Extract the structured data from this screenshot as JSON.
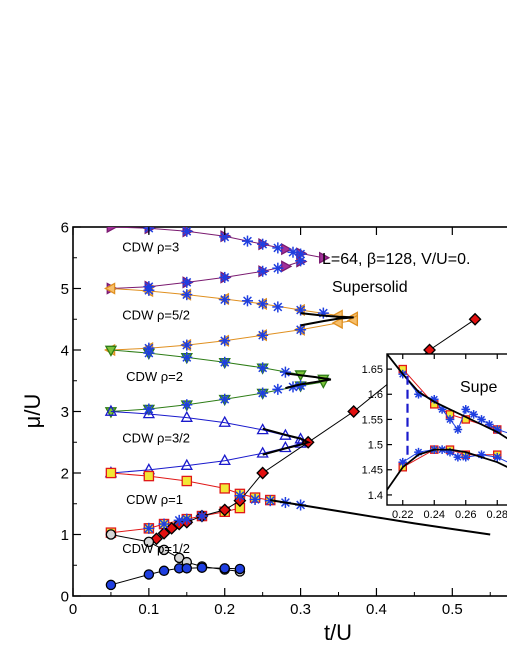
{
  "chart_data": {
    "type": "scatter",
    "main": {
      "xlabel": "t/U",
      "ylabel": "μ/U",
      "xlim": [
        0,
        0.58
      ],
      "ylim": [
        0,
        6
      ],
      "xticks": [
        0,
        0.1,
        0.2,
        0.3,
        0.4,
        0.5
      ],
      "xtick_labels": [
        "0",
        "0.1",
        "0.2",
        "0.3",
        "0.4",
        "0.5"
      ],
      "yticks": [
        0,
        1,
        2,
        3,
        4,
        5,
        6
      ],
      "ytick_labels": [
        "0",
        "1",
        "2",
        "3",
        "4",
        "5",
        "6"
      ],
      "grid": false,
      "annotations": {
        "params": "L=64, β=128, V/U=0.",
        "supersolid": "Supersolid",
        "cdw_labels": [
          {
            "text": "CDW   ρ=3",
            "x": 0.065,
            "y": 5.6
          },
          {
            "text": "CDW   ρ=5/2",
            "x": 0.065,
            "y": 4.5
          },
          {
            "text": "CDW   ρ=2",
            "x": 0.07,
            "y": 3.5
          },
          {
            "text": "CDW   ρ=3/2",
            "x": 0.065,
            "y": 2.5
          },
          {
            "text": "CDW   ρ=1",
            "x": 0.07,
            "y": 1.5
          },
          {
            "text": "CDW   ρ=1/2",
            "x": 0.065,
            "y": 0.7
          }
        ]
      },
      "series": [
        {
          "marker": "triangle-right",
          "fill": "#a3309a",
          "edge": "#7a1a70",
          "line": "#7a1a70",
          "x": [
            0.05,
            0.1,
            0.15,
            0.2,
            0.25,
            0.28,
            0.3,
            0.33
          ],
          "y": [
            6.0,
            5.98,
            5.93,
            5.85,
            5.72,
            5.64,
            5.57,
            5.5
          ]
        },
        {
          "marker": "triangle-right",
          "fill": "#a3309a",
          "edge": "#7a1a70",
          "line": "#7a1a70",
          "x": [
            0.05,
            0.1,
            0.15,
            0.2,
            0.25,
            0.28,
            0.3
          ],
          "y": [
            5.0,
            5.03,
            5.1,
            5.18,
            5.28,
            5.36,
            5.44
          ]
        },
        {
          "marker": "triangle-left",
          "fill": "#f7bf6a",
          "edge": "#e09020",
          "line": "#e09020",
          "x": [
            0.05,
            0.1,
            0.15,
            0.2,
            0.25,
            0.3,
            0.35,
            0.37
          ],
          "y": [
            5.0,
            4.96,
            4.9,
            4.83,
            4.75,
            4.65,
            4.56,
            4.53
          ]
        },
        {
          "marker": "triangle-left",
          "fill": "#f7bf6a",
          "edge": "#e09020",
          "line": "#e09020",
          "x": [
            0.05,
            0.1,
            0.15,
            0.2,
            0.25,
            0.3,
            0.35,
            0.37
          ],
          "y": [
            4.0,
            4.03,
            4.08,
            4.15,
            4.24,
            4.33,
            4.44,
            4.48
          ]
        },
        {
          "marker": "triangle-down",
          "fill": "#7cc23a",
          "edge": "#2e7d16",
          "line": "#2e7d16",
          "x": [
            0.05,
            0.1,
            0.15,
            0.2,
            0.25,
            0.3,
            0.33
          ],
          "y": [
            4.0,
            3.95,
            3.88,
            3.8,
            3.71,
            3.6,
            3.53
          ]
        },
        {
          "marker": "triangle-down",
          "fill": "#7cc23a",
          "edge": "#2e7d16",
          "line": "#2e7d16",
          "x": [
            0.05,
            0.1,
            0.15,
            0.2,
            0.25,
            0.3,
            0.33
          ],
          "y": [
            3.0,
            3.04,
            3.11,
            3.2,
            3.3,
            3.42,
            3.48
          ]
        },
        {
          "marker": "triangle-up",
          "fill": "none",
          "edge": "#1a1acc",
          "line": "#1a1acc",
          "x": [
            0.05,
            0.1,
            0.15,
            0.2,
            0.25,
            0.28,
            0.3
          ],
          "y": [
            3.0,
            2.96,
            2.9,
            2.82,
            2.7,
            2.61,
            2.55
          ]
        },
        {
          "marker": "triangle-up",
          "fill": "none",
          "edge": "#1a1acc",
          "line": "#1a1acc",
          "x": [
            0.05,
            0.1,
            0.15,
            0.2,
            0.25,
            0.28,
            0.3
          ],
          "y": [
            2.0,
            2.05,
            2.12,
            2.2,
            2.32,
            2.41,
            2.48
          ]
        },
        {
          "marker": "square",
          "fill": "#f2e836",
          "edge": "#e01818",
          "line": "#e01818",
          "x": [
            0.05,
            0.1,
            0.15,
            0.2,
            0.22,
            0.24,
            0.26
          ],
          "y": [
            2.0,
            1.95,
            1.87,
            1.75,
            1.66,
            1.6,
            1.56
          ]
        },
        {
          "marker": "square",
          "fill": "#f2e836",
          "edge": "#e01818",
          "line": "#e01818",
          "x": [
            0.05,
            0.1,
            0.12,
            0.15,
            0.17,
            0.2,
            0.22
          ],
          "y": [
            1.03,
            1.1,
            1.17,
            1.25,
            1.3,
            1.37,
            1.43
          ]
        },
        {
          "marker": "diamond",
          "fill": "#e21010",
          "edge": "#000000",
          "line": "#000000",
          "x": [
            0.11,
            0.12,
            0.13,
            0.14,
            0.15,
            0.17,
            0.2,
            0.22,
            0.25,
            0.31,
            0.37,
            0.47,
            0.53
          ],
          "y": [
            0.93,
            1.02,
            1.1,
            1.17,
            1.2,
            1.3,
            1.4,
            1.55,
            2.0,
            2.5,
            3.0,
            4.0,
            4.5
          ]
        },
        {
          "marker": "circle",
          "fill": "#d6d6d6",
          "edge": "#000000",
          "line": "#000000",
          "x": [
            0.05,
            0.1,
            0.12,
            0.14,
            0.15,
            0.17,
            0.2,
            0.22
          ],
          "y": [
            1.0,
            0.88,
            0.75,
            0.62,
            0.55,
            0.48,
            0.43,
            0.4
          ]
        },
        {
          "marker": "circle",
          "fill": "#1f3fe0",
          "edge": "#000000",
          "line": "#000000",
          "x": [
            0.05,
            0.1,
            0.12,
            0.14,
            0.15,
            0.17,
            0.2,
            0.22
          ],
          "y": [
            0.18,
            0.35,
            0.41,
            0.45,
            0.45,
            0.46,
            0.45,
            0.44
          ]
        },
        {
          "marker": "asterisk",
          "fill": "#1f3fe0",
          "edge": "#1f3fe0",
          "line": "none",
          "x": [
            0.1,
            0.15,
            0.2,
            0.23,
            0.25,
            0.27,
            0.29,
            0.3,
            0.1,
            0.15,
            0.2,
            0.25,
            0.27,
            0.3,
            0.1,
            0.15,
            0.2,
            0.23,
            0.25,
            0.27,
            0.3,
            0.33,
            0.1,
            0.15,
            0.2,
            0.25,
            0.3,
            0.1,
            0.15,
            0.2,
            0.25,
            0.28,
            0.1,
            0.15,
            0.2,
            0.25,
            0.27,
            0.29,
            0.3,
            0.1,
            0.12,
            0.14,
            0.15,
            0.17,
            0.22,
            0.24,
            0.26,
            0.28,
            0.3
          ],
          "y": [
            5.98,
            5.93,
            5.84,
            5.77,
            5.72,
            5.66,
            5.59,
            5.56,
            5.03,
            5.1,
            5.18,
            5.28,
            5.33,
            5.45,
            4.97,
            4.9,
            4.82,
            4.8,
            4.75,
            4.7,
            4.65,
            4.6,
            4.03,
            4.08,
            4.15,
            4.24,
            4.33,
            3.95,
            3.88,
            3.8,
            3.71,
            3.64,
            3.04,
            3.11,
            3.2,
            3.3,
            3.36,
            3.4,
            3.42,
            1.1,
            1.17,
            1.23,
            1.25,
            1.3,
            1.63,
            1.57,
            1.55,
            1.52,
            1.48
          ]
        },
        {
          "marker": "none",
          "fill": "none",
          "edge": "#000000",
          "line": "#000000",
          "line_width": 2,
          "x": [
            0.26,
            0.3,
            0.35,
            0.4,
            0.45,
            0.5,
            0.55
          ],
          "y": [
            1.56,
            1.48,
            1.38,
            1.28,
            1.18,
            1.09,
            1.0
          ]
        },
        {
          "marker": "none",
          "fill": "none",
          "edge": "#000000",
          "line": "#000000",
          "line_width": 2,
          "x": [
            0.3,
            0.33,
            0.35,
            0.37,
            0.35,
            0.33,
            0.3
          ],
          "y": [
            4.4,
            4.47,
            4.51,
            4.53,
            4.54,
            4.56,
            4.6
          ]
        },
        {
          "marker": "none",
          "fill": "none",
          "edge": "#000000",
          "line": "#000000",
          "line_width": 2,
          "x": [
            0.28,
            0.3,
            0.32,
            0.34,
            0.32,
            0.3,
            0.28
          ],
          "y": [
            3.38,
            3.44,
            3.48,
            3.52,
            3.56,
            3.59,
            3.62
          ]
        },
        {
          "marker": "none",
          "fill": "none",
          "edge": "#000000",
          "line": "#000000",
          "line_width": 2,
          "x": [
            0.25,
            0.28,
            0.3,
            0.31,
            0.3,
            0.28,
            0.25
          ],
          "y": [
            2.3,
            2.4,
            2.46,
            2.5,
            2.56,
            2.62,
            2.72
          ]
        }
      ]
    },
    "inset": {
      "title": "Supe",
      "xlim": [
        0.21,
        0.29
      ],
      "ylim": [
        1.38,
        1.68
      ],
      "xticks": [
        0.22,
        0.24,
        0.26,
        0.28
      ],
      "xtick_labels": [
        "0.22",
        "0.24",
        "0.26",
        "0.28"
      ],
      "yticks": [
        1.4,
        1.45,
        1.5,
        1.55,
        1.6,
        1.65
      ],
      "ytick_labels": [
        "1.4",
        "1.45",
        "1.5",
        "1.55",
        "1.6",
        "1.65"
      ],
      "series": [
        {
          "marker": "square",
          "fill": "#f2e836",
          "edge": "#e01818",
          "line": "#e01818",
          "x": [
            0.22,
            0.24,
            0.25,
            0.26,
            0.28
          ],
          "y": [
            1.65,
            1.58,
            1.56,
            1.55,
            1.53
          ]
        },
        {
          "marker": "square",
          "fill": "#f2e836",
          "edge": "#e01818",
          "line": "#e01818",
          "x": [
            0.22,
            0.24,
            0.25,
            0.26,
            0.28
          ],
          "y": [
            1.455,
            1.49,
            1.49,
            1.48,
            1.48
          ]
        },
        {
          "marker": "asterisk",
          "fill": "#1f3fe0",
          "edge": "#1f3fe0",
          "line": "#1f3fe0",
          "x": [
            0.22,
            0.23,
            0.24,
            0.245,
            0.25,
            0.255,
            0.26,
            0.265,
            0.27,
            0.275,
            0.28,
            0.29
          ],
          "y": [
            1.64,
            1.6,
            1.59,
            1.57,
            1.55,
            1.53,
            1.57,
            1.56,
            1.55,
            1.54,
            1.53,
            1.52
          ]
        },
        {
          "marker": "asterisk",
          "fill": "#1f3fe0",
          "edge": "#1f3fe0",
          "line": "#1f3fe0",
          "x": [
            0.22,
            0.23,
            0.24,
            0.245,
            0.25,
            0.255,
            0.26,
            0.27,
            0.28,
            0.29
          ],
          "y": [
            1.465,
            1.485,
            1.49,
            1.49,
            1.485,
            1.475,
            1.475,
            1.48,
            1.475,
            1.46
          ]
        },
        {
          "marker": "none",
          "fill": "none",
          "edge": "#000000",
          "line": "#000000",
          "line_width": 1.8,
          "x": [
            0.21,
            0.22,
            0.23,
            0.24,
            0.25,
            0.26,
            0.27,
            0.28,
            0.29
          ],
          "y": [
            1.68,
            1.64,
            1.605,
            1.585,
            1.57,
            1.555,
            1.54,
            1.525,
            1.505
          ]
        },
        {
          "marker": "none",
          "fill": "none",
          "edge": "#000000",
          "line": "#000000",
          "line_width": 1.8,
          "x": [
            0.21,
            0.22,
            0.23,
            0.24,
            0.25,
            0.26,
            0.27,
            0.28,
            0.29
          ],
          "y": [
            1.41,
            1.455,
            1.48,
            1.49,
            1.49,
            1.485,
            1.475,
            1.465,
            1.45
          ]
        },
        {
          "marker": "none",
          "fill": "none",
          "edge": "#1a1acc",
          "line": "#1a1acc",
          "line_width": 2.2,
          "dashed": true,
          "x": [
            0.223,
            0.223
          ],
          "y": [
            1.48,
            1.64
          ]
        }
      ]
    }
  }
}
